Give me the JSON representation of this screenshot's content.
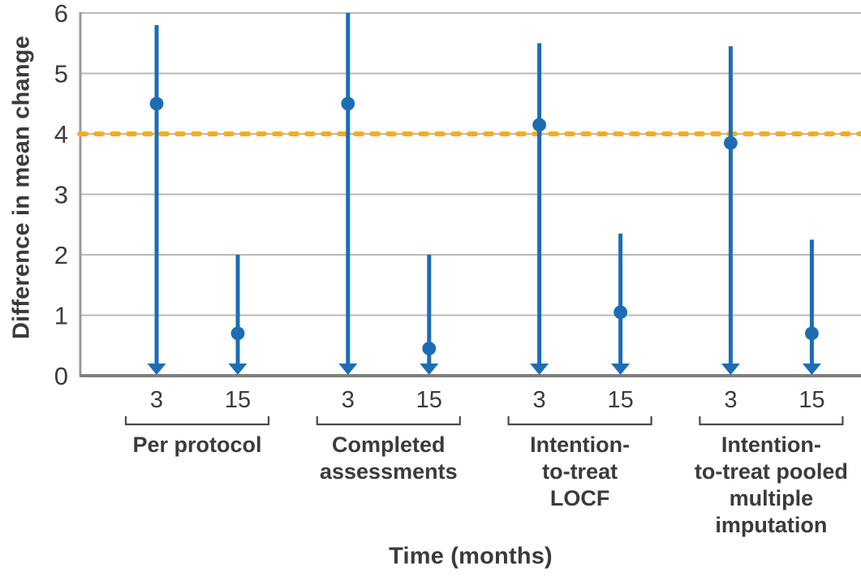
{
  "figure": {
    "background": "#ffffff"
  },
  "colors": {
    "series_blue": "#1c6db4",
    "reference_orange": "#f9ac1d",
    "gridline": "#b9b9b9",
    "axis_left": "#9b9b9b",
    "axis_bottom": "#7e7e7e",
    "text": "#3b3b3b",
    "bracket": "#4a4a4a"
  },
  "chart_data": {
    "type": "scatter",
    "subtype": "point-estimates-with-confidence-intervals",
    "title": "",
    "ylabel": "Difference in mean change",
    "xlabel": "Time (months)",
    "ylim": [
      0,
      6
    ],
    "yticks": [
      0,
      1,
      2,
      3,
      4,
      5,
      6
    ],
    "grid": "horizontal",
    "legend": "none",
    "reference_line": {
      "y": 4,
      "style": "dashed",
      "color": "#f9ac1d"
    },
    "arrow_note": "downward arrows indicate lower confidence limits extend below 0 (clipped at axis)",
    "groups": [
      {
        "label": "Per protocol",
        "label_lines": [
          "Per protocol"
        ],
        "points": [
          {
            "month": "3",
            "estimate": 4.5,
            "upper": 5.8,
            "lower_below_axis": true
          },
          {
            "month": "15",
            "estimate": 0.7,
            "upper": 2.0,
            "lower_below_axis": true
          }
        ]
      },
      {
        "label": "Completed assessments",
        "label_lines": [
          "Completed",
          "assessments"
        ],
        "points": [
          {
            "month": "3",
            "estimate": 4.5,
            "upper": 6.0,
            "lower_below_axis": true
          },
          {
            "month": "15",
            "estimate": 0.45,
            "upper": 2.0,
            "lower_below_axis": true
          }
        ]
      },
      {
        "label": "Intention-to-treat LOCF",
        "label_lines": [
          "Intention-",
          "to-treat",
          "LOCF"
        ],
        "points": [
          {
            "month": "3",
            "estimate": 4.15,
            "upper": 5.5,
            "lower_below_axis": true
          },
          {
            "month": "15",
            "estimate": 1.05,
            "upper": 2.35,
            "lower_below_axis": true
          }
        ]
      },
      {
        "label": "Intention-to-treat pooled multiple imputation",
        "label_lines": [
          "Intention-",
          "to-treat pooled",
          "multiple",
          "imputation"
        ],
        "points": [
          {
            "month": "3",
            "estimate": 3.85,
            "upper": 5.45,
            "lower_below_axis": true
          },
          {
            "month": "15",
            "estimate": 0.7,
            "upper": 2.25,
            "lower_below_axis": true
          }
        ]
      }
    ]
  }
}
